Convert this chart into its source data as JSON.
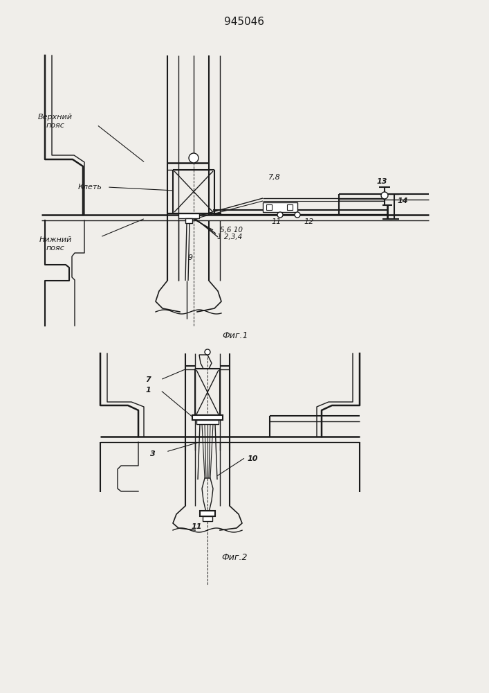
{
  "title": "945046",
  "fig1_caption": "Фиг.1",
  "fig2_caption": "Фиг.2",
  "bg_color": "#f0eeea",
  "line_color": "#1a1a1a",
  "label_vp": "Верхний\nпояс",
  "label_klet": "Клеть",
  "label_np": "Нижний\nпояс"
}
